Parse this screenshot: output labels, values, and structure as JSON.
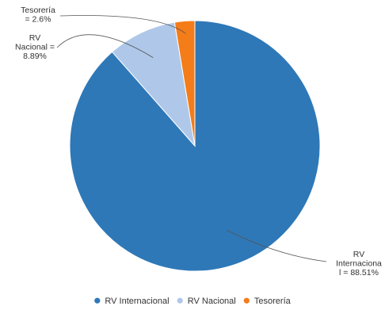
{
  "chart_data": {
    "type": "pie",
    "title": "",
    "categories": [
      "RV Internacional",
      "RV Nacional",
      "Tesorería"
    ],
    "values": [
      88.51,
      8.89,
      2.6
    ],
    "colors": [
      "#2e78b7",
      "#afc8e9",
      "#f47c19"
    ],
    "slice_labels": [
      [
        "RV",
        "Internaciona",
        "l = 88.51%"
      ],
      [
        "RV",
        "Nacional =",
        "8.89%"
      ],
      [
        "Tesorería",
        "= 2.6%"
      ]
    ],
    "legend": {
      "placement": "bottom",
      "entries": [
        "RV Internacional",
        "RV Nacional",
        "Tesorería"
      ]
    }
  }
}
